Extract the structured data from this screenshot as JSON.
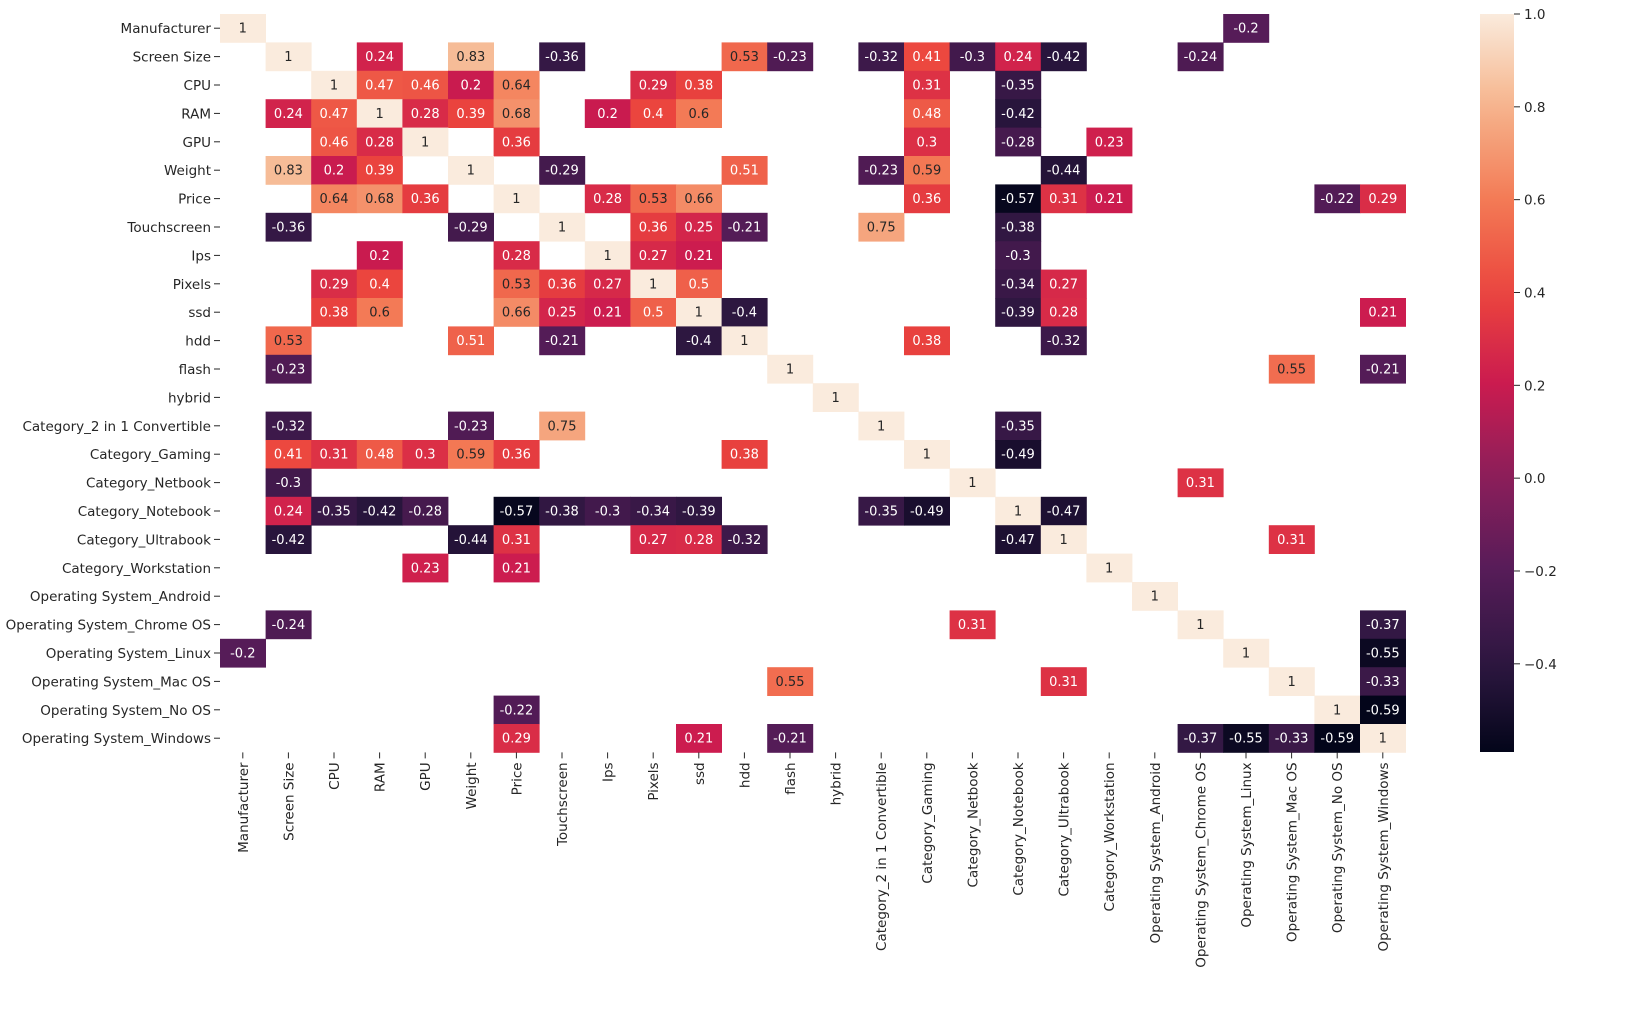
{
  "chart_data": {
    "type": "heatmap",
    "title": "",
    "xlabel": "",
    "ylabel": "",
    "labels": [
      "Manufacturer",
      "Screen Size",
      "CPU",
      "RAM",
      "GPU",
      "Weight",
      "Price",
      "Touchscreen",
      "Ips",
      "Pixels",
      "ssd",
      "hdd",
      "flash",
      "hybrid",
      "Category_2 in 1 Convertible",
      "Category_Gaming",
      "Category_Netbook",
      "Category_Notebook",
      "Category_Ultrabook",
      "Category_Workstation",
      "Operating System_Android",
      "Operating System_Chrome OS",
      "Operating System_Linux",
      "Operating System_Mac OS",
      "Operating System_No OS",
      "Operating System_Windows"
    ],
    "matrix": [
      [
        1,
        null,
        null,
        null,
        null,
        null,
        null,
        null,
        null,
        null,
        null,
        null,
        null,
        null,
        null,
        null,
        null,
        null,
        null,
        null,
        null,
        null,
        -0.2,
        null,
        null,
        null
      ],
      [
        null,
        1,
        null,
        0.24,
        null,
        0.83,
        null,
        -0.36,
        null,
        null,
        null,
        0.53,
        -0.23,
        null,
        -0.32,
        0.41,
        -0.3,
        0.24,
        -0.42,
        null,
        null,
        -0.24,
        null,
        null,
        null,
        null
      ],
      [
        null,
        null,
        1,
        0.47,
        0.46,
        0.2,
        0.64,
        null,
        null,
        0.29,
        0.38,
        null,
        null,
        null,
        null,
        0.31,
        null,
        -0.35,
        null,
        null,
        null,
        null,
        null,
        null,
        null,
        null
      ],
      [
        null,
        0.24,
        0.47,
        1,
        0.28,
        0.39,
        0.68,
        null,
        0.2,
        0.4,
        0.6,
        null,
        null,
        null,
        null,
        0.48,
        null,
        -0.42,
        null,
        null,
        null,
        null,
        null,
        null,
        null,
        null
      ],
      [
        null,
        null,
        0.46,
        0.28,
        1,
        null,
        0.36,
        null,
        null,
        null,
        null,
        null,
        null,
        null,
        null,
        0.3,
        null,
        -0.28,
        null,
        0.23,
        null,
        null,
        null,
        null,
        null,
        null
      ],
      [
        null,
        0.83,
        0.2,
        0.39,
        null,
        1,
        null,
        -0.29,
        null,
        null,
        null,
        0.51,
        null,
        null,
        -0.23,
        0.59,
        null,
        null,
        -0.44,
        null,
        null,
        null,
        null,
        null,
        null,
        null
      ],
      [
        null,
        null,
        0.64,
        0.68,
        0.36,
        null,
        1,
        null,
        0.28,
        0.53,
        0.66,
        null,
        null,
        null,
        null,
        0.36,
        null,
        -0.57,
        0.31,
        0.21,
        null,
        null,
        null,
        null,
        -0.22,
        0.29
      ],
      [
        null,
        -0.36,
        null,
        null,
        null,
        -0.29,
        null,
        1,
        null,
        0.36,
        0.25,
        -0.21,
        null,
        null,
        0.75,
        null,
        null,
        -0.38,
        null,
        null,
        null,
        null,
        null,
        null,
        null,
        null
      ],
      [
        null,
        null,
        null,
        0.2,
        null,
        null,
        0.28,
        null,
        1,
        0.27,
        0.21,
        null,
        null,
        null,
        null,
        null,
        null,
        -0.3,
        null,
        null,
        null,
        null,
        null,
        null,
        null,
        null
      ],
      [
        null,
        null,
        0.29,
        0.4,
        null,
        null,
        0.53,
        0.36,
        0.27,
        1,
        0.5,
        null,
        null,
        null,
        null,
        null,
        null,
        -0.34,
        0.27,
        null,
        null,
        null,
        null,
        null,
        null,
        null
      ],
      [
        null,
        null,
        0.38,
        0.6,
        null,
        null,
        0.66,
        0.25,
        0.21,
        0.5,
        1,
        -0.4,
        null,
        null,
        null,
        null,
        null,
        -0.39,
        0.28,
        null,
        null,
        null,
        null,
        null,
        null,
        0.21
      ],
      [
        null,
        0.53,
        null,
        null,
        null,
        0.51,
        null,
        -0.21,
        null,
        null,
        -0.4,
        1,
        null,
        null,
        null,
        0.38,
        null,
        null,
        -0.32,
        null,
        null,
        null,
        null,
        null,
        null,
        null
      ],
      [
        null,
        -0.23,
        null,
        null,
        null,
        null,
        null,
        null,
        null,
        null,
        null,
        null,
        1,
        null,
        null,
        null,
        null,
        null,
        null,
        null,
        null,
        null,
        null,
        0.55,
        null,
        -0.21
      ],
      [
        null,
        null,
        null,
        null,
        null,
        null,
        null,
        null,
        null,
        null,
        null,
        null,
        null,
        1,
        null,
        null,
        null,
        null,
        null,
        null,
        null,
        null,
        null,
        null,
        null,
        null
      ],
      [
        null,
        -0.32,
        null,
        null,
        null,
        -0.23,
        null,
        0.75,
        null,
        null,
        null,
        null,
        null,
        null,
        1,
        null,
        null,
        -0.35,
        null,
        null,
        null,
        null,
        null,
        null,
        null,
        null
      ],
      [
        null,
        0.41,
        0.31,
        0.48,
        0.3,
        0.59,
        0.36,
        null,
        null,
        null,
        null,
        0.38,
        null,
        null,
        null,
        1,
        null,
        -0.49,
        null,
        null,
        null,
        null,
        null,
        null,
        null,
        null
      ],
      [
        null,
        -0.3,
        null,
        null,
        null,
        null,
        null,
        null,
        null,
        null,
        null,
        null,
        null,
        null,
        null,
        null,
        1,
        null,
        null,
        null,
        null,
        0.31,
        null,
        null,
        null,
        null
      ],
      [
        null,
        0.24,
        -0.35,
        -0.42,
        -0.28,
        null,
        -0.57,
        -0.38,
        -0.3,
        -0.34,
        -0.39,
        null,
        null,
        null,
        -0.35,
        -0.49,
        null,
        1,
        -0.47,
        null,
        null,
        null,
        null,
        null,
        null,
        null
      ],
      [
        null,
        -0.42,
        null,
        null,
        null,
        -0.44,
        0.31,
        null,
        null,
        0.27,
        0.28,
        -0.32,
        null,
        null,
        null,
        null,
        null,
        -0.47,
        1,
        null,
        null,
        null,
        null,
        0.31,
        null,
        null
      ],
      [
        null,
        null,
        null,
        null,
        0.23,
        null,
        0.21,
        null,
        null,
        null,
        null,
        null,
        null,
        null,
        null,
        null,
        null,
        null,
        null,
        1,
        null,
        null,
        null,
        null,
        null,
        null
      ],
      [
        null,
        null,
        null,
        null,
        null,
        null,
        null,
        null,
        null,
        null,
        null,
        null,
        null,
        null,
        null,
        null,
        null,
        null,
        null,
        null,
        1,
        null,
        null,
        null,
        null,
        null
      ],
      [
        null,
        -0.24,
        null,
        null,
        null,
        null,
        null,
        null,
        null,
        null,
        null,
        null,
        null,
        null,
        null,
        null,
        0.31,
        null,
        null,
        null,
        null,
        1,
        null,
        null,
        null,
        -0.37
      ],
      [
        -0.2,
        null,
        null,
        null,
        null,
        null,
        null,
        null,
        null,
        null,
        null,
        null,
        null,
        null,
        null,
        null,
        null,
        null,
        null,
        null,
        null,
        null,
        1,
        null,
        null,
        -0.55
      ],
      [
        null,
        null,
        null,
        null,
        null,
        null,
        null,
        null,
        null,
        null,
        null,
        null,
        0.55,
        null,
        null,
        null,
        null,
        null,
        0.31,
        null,
        null,
        null,
        null,
        1,
        null,
        -0.33
      ],
      [
        null,
        null,
        null,
        null,
        null,
        null,
        -0.22,
        null,
        null,
        null,
        null,
        null,
        null,
        null,
        null,
        null,
        null,
        null,
        null,
        null,
        null,
        null,
        null,
        null,
        1,
        -0.59
      ],
      [
        null,
        null,
        null,
        null,
        null,
        null,
        0.29,
        null,
        null,
        null,
        0.21,
        null,
        -0.21,
        null,
        null,
        null,
        null,
        null,
        null,
        null,
        null,
        -0.37,
        -0.55,
        -0.33,
        -0.59,
        1
      ]
    ],
    "vmin": -0.59,
    "vmax": 1.0,
    "colormap": "rocket",
    "colorbar_ticks": [
      1.0,
      0.8,
      0.6,
      0.4,
      0.2,
      0.0,
      -0.2,
      -0.4
    ],
    "colorbar_tick_labels": [
      "1.0",
      "0.8",
      "0.6",
      "0.4",
      "0.2",
      "0.0",
      "−0.2",
      "−0.4"
    ],
    "annotations": true
  }
}
